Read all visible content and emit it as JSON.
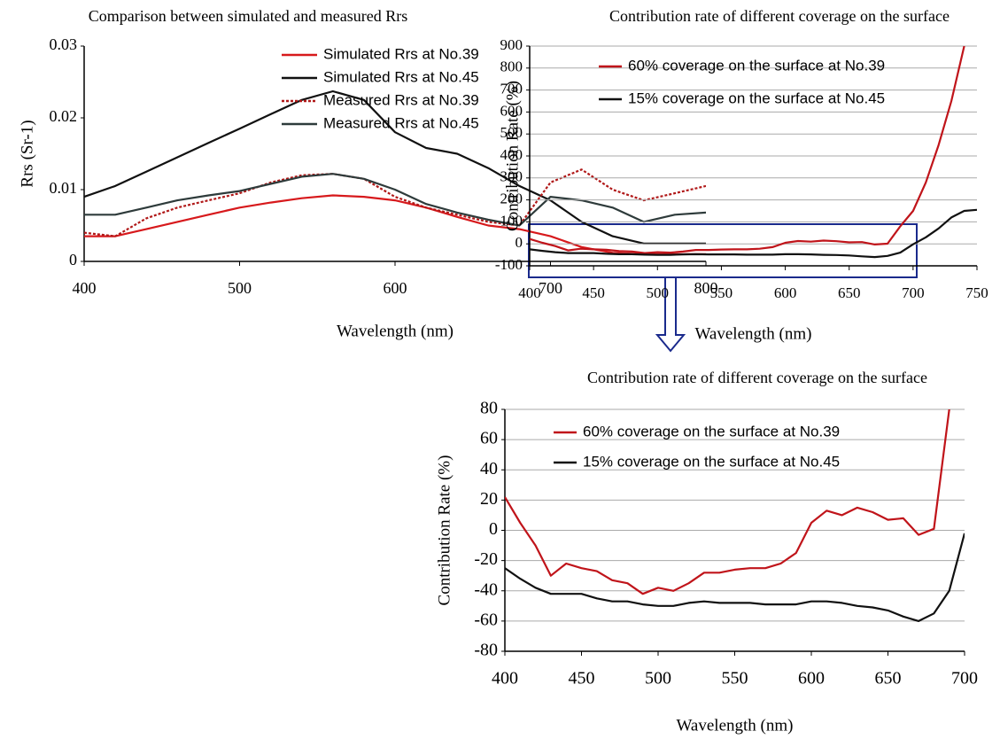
{
  "chart_data": [
    {
      "type": "line",
      "title": "Comparison between simulated and measured Rrs",
      "xlabel": "Wavelength (nm)",
      "ylabel": "Rrs (Sr-1)",
      "x": [
        400,
        420,
        440,
        460,
        480,
        500,
        520,
        540,
        560,
        580,
        600,
        620,
        640,
        660,
        680,
        700,
        720,
        740,
        760,
        780,
        800
      ],
      "series": [
        {
          "name": "Simulated Rrs at No.39",
          "color": "#d7191c",
          "values": [
            0.0035,
            0.0035,
            0.0045,
            0.0055,
            0.0065,
            0.0075,
            0.0082,
            0.0088,
            0.0092,
            0.009,
            0.0085,
            0.0075,
            0.0062,
            0.005,
            0.0045,
            0.0035,
            0.002,
            0.0012,
            0.001,
            0.001,
            0.001
          ]
        },
        {
          "name": "Simulated Rrs at No.45",
          "color": "#111111",
          "values": [
            0.009,
            0.0105,
            0.0125,
            0.0145,
            0.0165,
            0.0185,
            0.0205,
            0.0225,
            0.0237,
            0.0225,
            0.018,
            0.0158,
            0.015,
            0.013,
            0.0105,
            0.0085,
            0.0055,
            0.0035,
            0.0025,
            0.0025,
            0.0025
          ]
        },
        {
          "name": "Measured Rrs at No.39",
          "color": "#b01818",
          "dash": true,
          "values": [
            0.004,
            0.0035,
            0.006,
            0.0075,
            0.0085,
            0.0095,
            0.011,
            0.012,
            0.0122,
            0.0115,
            0.009,
            0.0075,
            0.0065,
            0.0055,
            0.005,
            0.011,
            0.0128,
            0.01,
            0.0085,
            0.0095,
            0.0105
          ]
        },
        {
          "name": "Measured Rrs at No.45",
          "color": "#2e3b3b",
          "values": [
            0.0065,
            0.0065,
            0.0075,
            0.0085,
            0.0092,
            0.0098,
            0.0108,
            0.0118,
            0.0122,
            0.0115,
            0.01,
            0.008,
            0.0068,
            0.0058,
            0.005,
            0.009,
            0.0085,
            0.0075,
            0.0055,
            0.0065,
            0.0068
          ]
        }
      ],
      "xlim": [
        400,
        800
      ],
      "xticks": [
        400,
        500,
        600,
        700,
        800
      ],
      "ylim": [
        0,
        0.03
      ],
      "yticks": [
        0,
        0.01,
        0.02,
        0.03
      ],
      "grid": false,
      "legend": "upper right"
    },
    {
      "type": "line",
      "title": "Contribution rate of different coverage on the surface",
      "xlabel": "Wavelength (nm)",
      "ylabel": "Contribution Rate (%)",
      "x": [
        400,
        410,
        420,
        430,
        440,
        450,
        460,
        470,
        480,
        490,
        500,
        510,
        520,
        530,
        540,
        550,
        560,
        570,
        580,
        590,
        600,
        610,
        620,
        630,
        640,
        650,
        660,
        670,
        680,
        690,
        700,
        710,
        720,
        730,
        740,
        750
      ],
      "series": [
        {
          "name": "60% coverage on the surface at No.39",
          "color": "#c0141a",
          "values": [
            22,
            5,
            -10,
            -30,
            -22,
            -25,
            -27,
            -33,
            -35,
            -42,
            -38,
            -40,
            -35,
            -28,
            -28,
            -26,
            -25,
            -25,
            -22,
            -15,
            5,
            13,
            10,
            15,
            12,
            7,
            8,
            -3,
            1,
            80,
            150,
            280,
            450,
            650,
            900,
            null
          ]
        },
        {
          "name": "15% coverage on the surface at No.45",
          "color": "#111111",
          "values": [
            -25,
            -32,
            -38,
            -42,
            -42,
            -42,
            -45,
            -47,
            -47,
            -49,
            -50,
            -50,
            -48,
            -47,
            -48,
            -48,
            -48,
            -49,
            -49,
            -49,
            -47,
            -47,
            -48,
            -50,
            -51,
            -53,
            -57,
            -60,
            -55,
            -40,
            -2,
            30,
            70,
            120,
            150,
            155
          ]
        }
      ],
      "xlim": [
        400,
        750
      ],
      "xticks": [
        400,
        450,
        500,
        550,
        600,
        650,
        700,
        750
      ],
      "ylim": [
        -100,
        900
      ],
      "yticks": [
        -100,
        0,
        100,
        200,
        300,
        400,
        500,
        600,
        700,
        800,
        900
      ],
      "grid": true,
      "legend": "upper left"
    },
    {
      "type": "line",
      "title": "Contribution rate of different coverage on the surface",
      "xlabel": "Wavelength (nm)",
      "ylabel": "Contribution Rate (%)",
      "x": [
        400,
        410,
        420,
        430,
        440,
        450,
        460,
        470,
        480,
        490,
        500,
        510,
        520,
        530,
        540,
        550,
        560,
        570,
        580,
        590,
        600,
        610,
        620,
        630,
        640,
        650,
        660,
        670,
        680,
        690,
        700
      ],
      "series": [
        {
          "name": "60% coverage on the surface at No.39",
          "color": "#c0141a",
          "values": [
            22,
            5,
            -10,
            -30,
            -22,
            -25,
            -27,
            -33,
            -35,
            -42,
            -38,
            -40,
            -35,
            -28,
            -28,
            -26,
            -25,
            -25,
            -22,
            -15,
            5,
            13,
            10,
            15,
            12,
            7,
            8,
            -3,
            1,
            80,
            150
          ]
        },
        {
          "name": "15% coverage on the surface at No.45",
          "color": "#111111",
          "values": [
            -25,
            -32,
            -38,
            -42,
            -42,
            -42,
            -45,
            -47,
            -47,
            -49,
            -50,
            -50,
            -48,
            -47,
            -48,
            -48,
            -48,
            -49,
            -49,
            -49,
            -47,
            -47,
            -48,
            -50,
            -51,
            -53,
            -57,
            -60,
            -55,
            -40,
            -2
          ]
        }
      ],
      "xlim": [
        400,
        700
      ],
      "xticks": [
        400,
        450,
        500,
        550,
        600,
        650,
        700
      ],
      "ylim": [
        -80,
        80
      ],
      "yticks": [
        -80,
        -60,
        -40,
        -20,
        0,
        20,
        40,
        60,
        80
      ],
      "grid": true,
      "legend": "upper left"
    }
  ]
}
